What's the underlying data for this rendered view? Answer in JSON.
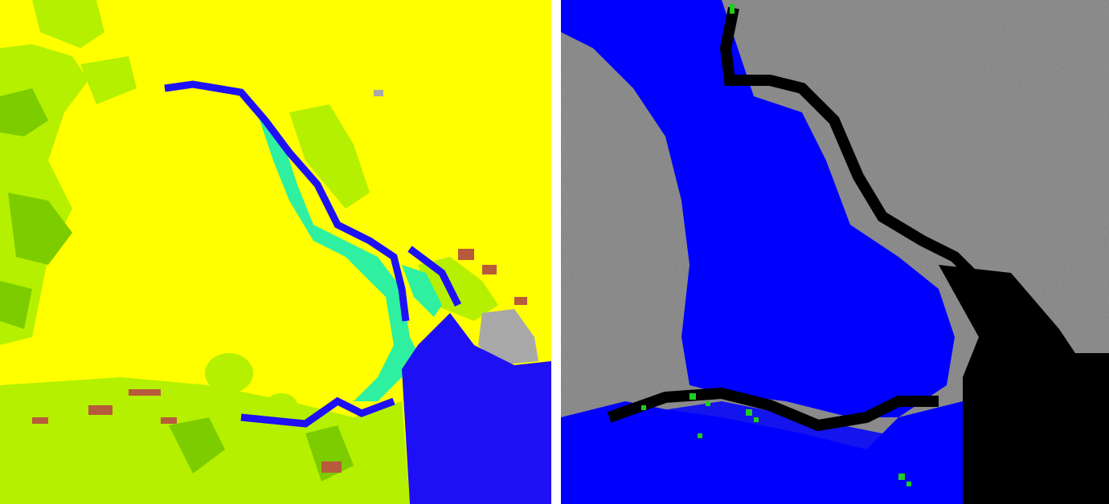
{
  "panels": [
    {
      "id": "land-cover-map"
    },
    {
      "id": "sar-flood-map"
    }
  ],
  "colors": {
    "land_yellow": "#ffff00",
    "grass_lightgreen": "#b4f000",
    "forest_green": "#7ccc00",
    "wetland_teal": "#2ef0a0",
    "water_blue": "#1e10f5",
    "urban_gray": "#a8a8a8",
    "cropland_brown": "#b85a3c",
    "sar_gray": "#808080",
    "sar_dark": "#000000",
    "flood_blue": "#0000ff",
    "flood_green": "#22cc22"
  }
}
